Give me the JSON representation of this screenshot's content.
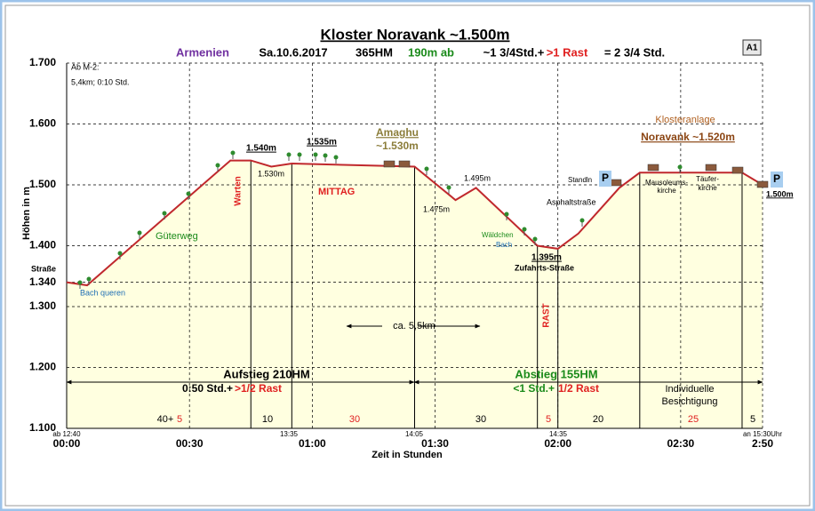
{
  "chart_data": {
    "type": "area",
    "title": "Kloster Noravank ~1.500m",
    "subtitle": [
      "Armenien",
      "Sa.10.6.2017",
      "365HM",
      "190m ab",
      "~1 3/4Std.+",
      ">1 Rast",
      "= 2 3/4 Std."
    ],
    "badge": "A1",
    "x_label": "Zeit in Stunden",
    "y_label": "Höhen in m",
    "x": [
      0,
      5,
      40,
      45,
      50,
      55,
      85,
      95,
      100,
      115,
      120,
      125,
      135,
      140,
      165,
      170
    ],
    "values": [
      1340,
      1335,
      1540,
      1540,
      1530,
      1535,
      1530,
      1475,
      1495,
      1400,
      1395,
      1420,
      1495,
      1520,
      1520,
      1500
    ],
    "color": "#c0282d",
    "fill": "#ffffe0",
    "xlim": [
      0,
      170
    ],
    "xticks": [
      {
        "value": 0,
        "label": "00:00"
      },
      {
        "value": 30,
        "label": "00:30"
      },
      {
        "value": 60,
        "label": "01:00"
      },
      {
        "value": 90,
        "label": "01:30"
      },
      {
        "value": 120,
        "label": "02:00"
      },
      {
        "value": 150,
        "label": "02:30"
      },
      {
        "value": 170,
        "label": "2:50"
      }
    ],
    "ylim": [
      1100,
      1700
    ],
    "yticks": [
      {
        "value": 1100,
        "label": "1.100"
      },
      {
        "value": 1200,
        "label": "1.200"
      },
      {
        "value": 1300,
        "label": "1.300"
      },
      {
        "value": 1340,
        "label": "1.340"
      },
      {
        "value": 1400,
        "label": "1.400"
      },
      {
        "value": 1500,
        "label": "1.500"
      },
      {
        "value": 1600,
        "label": "1.600"
      },
      {
        "value": 1700,
        "label": "1.700"
      }
    ],
    "grid": true,
    "annotations": [
      "Ab M-2:",
      "5,4km; 0:10 Std.",
      "Straße",
      "Bach queren",
      "Güterweg",
      "Warten",
      "1.540m",
      "1.530m",
      "1.535m",
      "MITTAG",
      "Amaghu",
      "~1.530m",
      "1.495m",
      "1.475m",
      "Wäldchen",
      "Bach",
      "1.395m",
      "Zufahrts-Straße",
      "RAST",
      "Asphaltstraße",
      "Standln",
      "P",
      "Klosteranlage",
      "Noravank ~1.520m",
      "Mausoleums-",
      "kirche",
      "Täufer-",
      "kirche",
      "P",
      "1.500m",
      "ca. 5,5km",
      "Aufstieg 210HM",
      "0:50 Std.+",
      ">1/2 Rast",
      "Abstieg 155HM",
      "<1 Std.+",
      "1/2 Rast",
      "Individuelle",
      "Besichtigung",
      "40+",
      "5",
      "10",
      "30",
      "30",
      "5",
      "20",
      "25",
      "5",
      "ab 12:40",
      "13:35",
      "14:05",
      "14:35",
      "an 15:30Uhr"
    ]
  }
}
